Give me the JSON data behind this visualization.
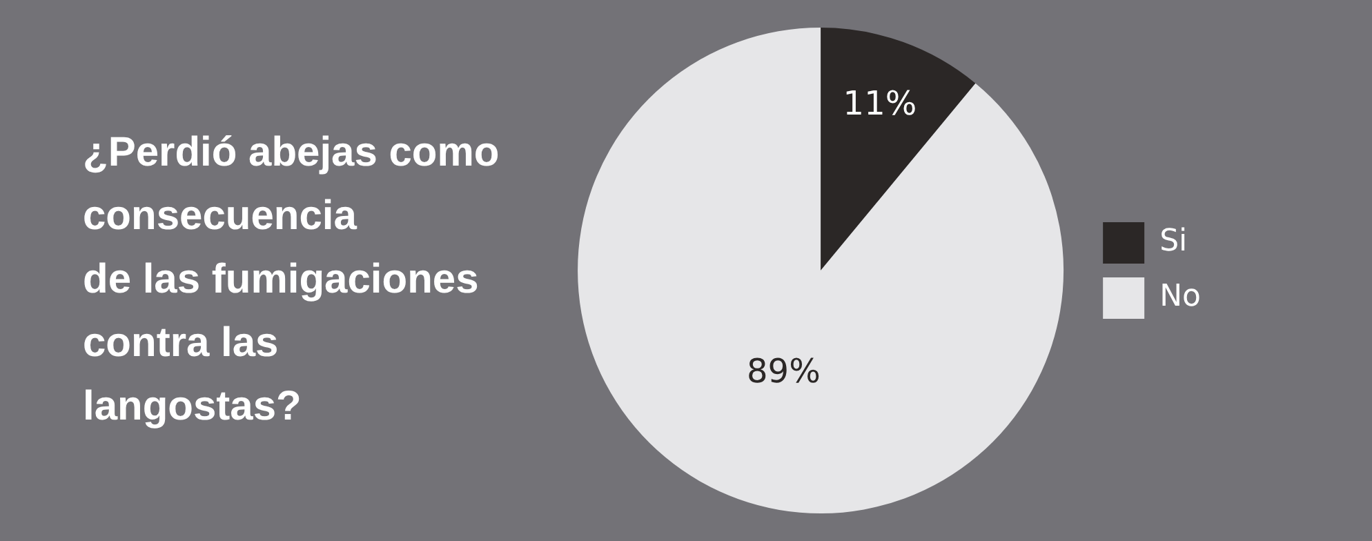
{
  "chart_data": {
    "type": "pie",
    "title": "¿Perdió abejas como\nconsecuencia\nde las fumigaciones\ncontra las\nlangostas?",
    "categories": [
      "Si",
      "No"
    ],
    "values": [
      11,
      89
    ],
    "colors": [
      "#2b2726",
      "#e6e6e8"
    ],
    "value_labels": [
      "11%",
      "89%"
    ],
    "legend": "right"
  }
}
